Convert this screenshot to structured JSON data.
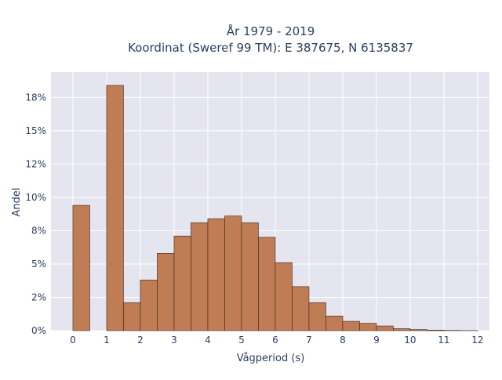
{
  "chart_data": {
    "type": "bar",
    "title_line1": "År 1979 - 2019",
    "title_line2": "Koordinat (Sweref 99 TM): E 387675, N 6135837",
    "xlabel": "Vågperiod (s)",
    "ylabel": "Andel",
    "xlim": [
      -0.65,
      12.35
    ],
    "ylim": [
      0,
      0.194
    ],
    "grid": true,
    "bar_width": 0.5,
    "x_ticks": [
      0,
      1,
      2,
      3,
      4,
      5,
      6,
      7,
      8,
      9,
      10,
      11,
      12
    ],
    "x_tick_labels": [
      "0",
      "1",
      "2",
      "3",
      "4",
      "5",
      "6",
      "7",
      "8",
      "9",
      "10",
      "11",
      "12"
    ],
    "y_ticks": [
      0,
      0.025,
      0.05,
      0.075,
      0.1,
      0.125,
      0.15,
      0.175
    ],
    "y_tick_labels": [
      "0%",
      "2%",
      "5%",
      "8%",
      "10%",
      "12%",
      "15%",
      "18%"
    ],
    "bar_color": "#c07d55",
    "bar_edge_color": "#3b2518",
    "plot_bg": "#e5e5f0",
    "x": [
      0,
      1,
      1.5,
      2,
      2.5,
      3,
      3.5,
      4,
      4.5,
      5,
      5.5,
      6,
      6.5,
      7,
      7.5,
      8,
      8.5,
      9,
      9.5,
      10,
      10.5,
      11,
      11.5
    ],
    "values": [
      0.094,
      0.184,
      0.021,
      0.038,
      0.058,
      0.071,
      0.081,
      0.084,
      0.086,
      0.081,
      0.07,
      0.051,
      0.033,
      0.021,
      0.011,
      0.007,
      0.0055,
      0.0035,
      0.0015,
      0.0008,
      0.0004,
      0.0002,
      0.0001
    ]
  }
}
